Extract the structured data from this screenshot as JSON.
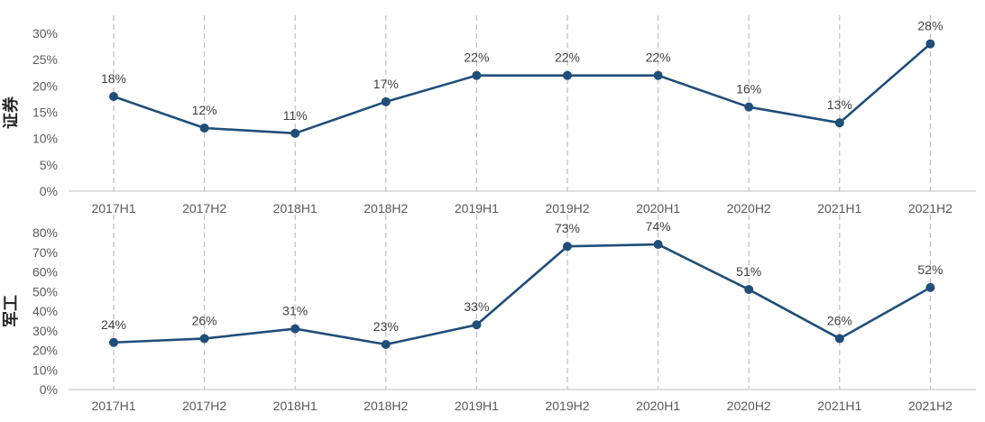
{
  "chart_data": [
    {
      "type": "line",
      "ylabel": "证券",
      "xlabel": "",
      "categories": [
        "2017H1",
        "2017H2",
        "2018H1",
        "2018H2",
        "2019H1",
        "2019H2",
        "2020H1",
        "2020H2",
        "2021H1",
        "2021H2"
      ],
      "series": [
        {
          "values": [
            18,
            12,
            11,
            17,
            22,
            22,
            22,
            16,
            13,
            28
          ]
        }
      ],
      "data_labels": [
        "18%",
        "12%",
        "11%",
        "17%",
        "22%",
        "22%",
        "22%",
        "16%",
        "13%",
        "28%"
      ],
      "y_ticks": [
        "0%",
        "5%",
        "10%",
        "15%",
        "20%",
        "25%",
        "30%"
      ],
      "ylim": [
        0,
        30
      ],
      "grid": "vertical dashed",
      "color": "#1F4E79"
    },
    {
      "type": "line",
      "ylabel": "军工",
      "xlabel": "",
      "categories": [
        "2017H1",
        "2017H2",
        "2018H1",
        "2018H2",
        "2019H1",
        "2019H2",
        "2020H1",
        "2020H2",
        "2021H1",
        "2021H2"
      ],
      "series": [
        {
          "values": [
            24,
            26,
            31,
            23,
            33,
            73,
            74,
            51,
            26,
            52
          ]
        }
      ],
      "data_labels": [
        "24%",
        "26%",
        "31%",
        "23%",
        "33%",
        "73%",
        "74%",
        "51%",
        "26%",
        "52%"
      ],
      "y_ticks": [
        "0%",
        "10%",
        "20%",
        "30%",
        "40%",
        "50%",
        "60%",
        "70%",
        "80%"
      ],
      "ylim": [
        0,
        80
      ],
      "grid": "vertical dashed",
      "color": "#1F4E79"
    }
  ]
}
